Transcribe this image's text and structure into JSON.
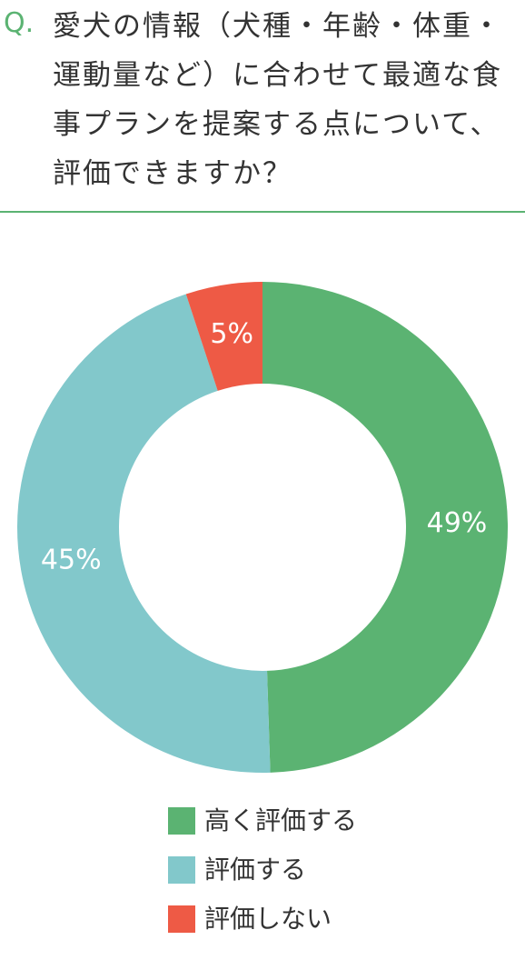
{
  "question": {
    "label": "Q.",
    "text": "愛犬の情報（犬種・年齢・体重・運動量など）に合わせて最適な食事プランを提案する点について、評価できますか？"
  },
  "chart_data": {
    "type": "donut",
    "categories": [
      "高く評価する",
      "評価する",
      "評価しない"
    ],
    "values": [
      49,
      45,
      5
    ],
    "value_labels": [
      "49%",
      "45%",
      "5%"
    ],
    "colors": [
      "#5bb372",
      "#82c8cb",
      "#ee5a45"
    ]
  }
}
